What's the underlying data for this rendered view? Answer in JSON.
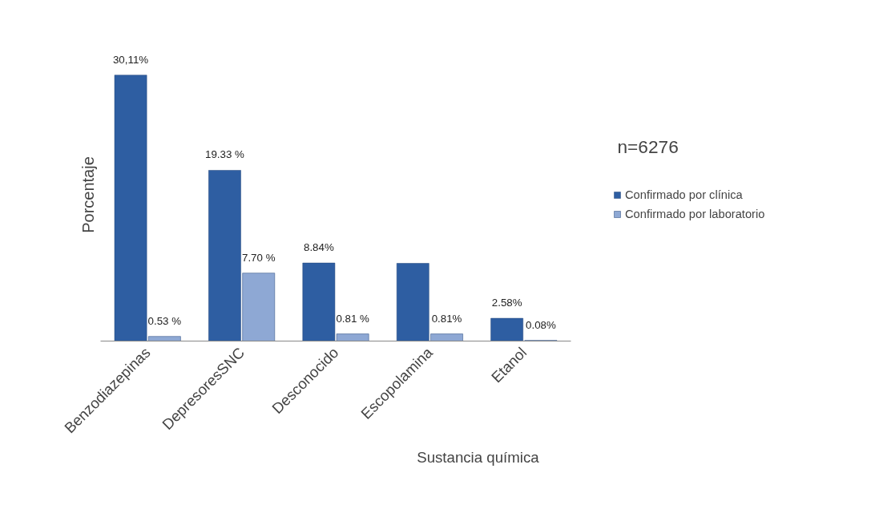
{
  "chart_data": {
    "type": "bar",
    "xlabel": "Sustancia  química",
    "ylabel": "Porcentaje",
    "categories": [
      "Benzodiazepinas",
      "DepresoresSNC",
      "Desconocido",
      "Escopolamina",
      "Etanol"
    ],
    "series": [
      {
        "name": "Confirmado por clínica",
        "color": "#2e5ea2",
        "values": [
          30.11,
          19.33,
          8.84,
          8.8,
          2.58
        ],
        "value_labels": [
          "30,11%",
          "19.33 %",
          "8.84%",
          null,
          "2.58%"
        ]
      },
      {
        "name": "Confirmado por laboratorio",
        "color": "#8ea8d4",
        "values": [
          0.53,
          7.7,
          0.81,
          0.81,
          0.08
        ],
        "value_labels": [
          "0.53 %",
          "7.70 %",
          "0.81 %",
          "0.81%",
          "0.08%"
        ]
      }
    ],
    "annotations": [
      "n=6276"
    ],
    "legend": "right",
    "grid": false
  }
}
